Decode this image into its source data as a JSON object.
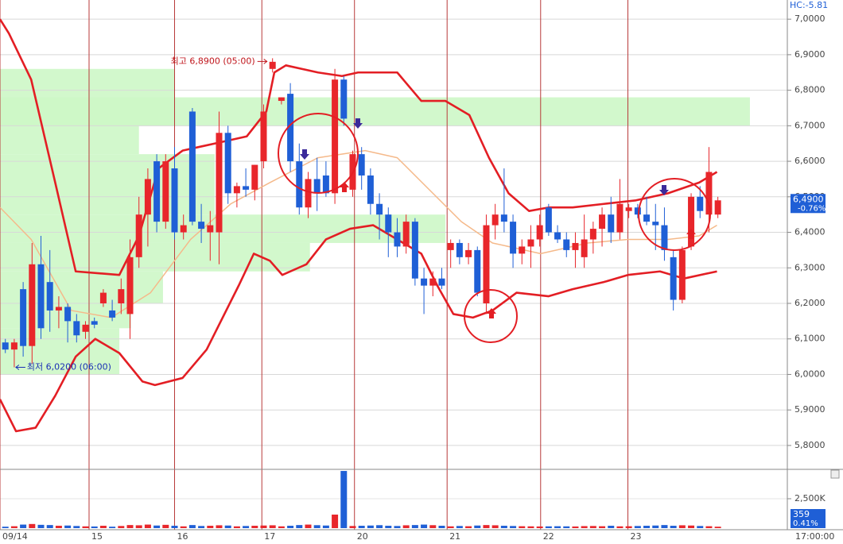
{
  "chart_data": [
    {
      "type": "candlestick",
      "header": "HC:-5.81",
      "open": [
        6.09,
        6.07,
        6.24,
        6.08,
        6.31,
        6.26,
        6.18,
        6.19,
        6.15,
        6.12,
        6.15,
        6.2,
        6.18,
        6.2,
        6.17,
        6.33,
        6.45,
        6.6,
        6.43,
        6.58,
        6.4,
        6.74,
        6.43,
        6.4,
        6.4,
        6.68,
        6.51,
        6.53,
        6.52,
        6.6,
        6.86,
        6.77,
        6.79,
        6.6,
        6.47,
        6.55,
        6.56,
        6.51,
        6.83,
        6.52,
        6.62,
        6.56,
        6.48,
        6.45,
        6.4,
        6.36,
        6.43,
        6.27,
        6.25,
        6.27,
        6.35,
        6.37,
        6.33,
        6.35,
        6.2,
        6.42,
        6.45,
        6.43,
        6.34,
        6.36,
        6.38,
        6.47,
        6.4,
        6.38,
        6.35,
        6.33,
        6.38,
        6.41,
        6.45,
        6.4,
        6.46,
        6.47,
        6.45,
        6.43,
        6.42,
        6.33,
        6.21,
        6.36,
        6.5,
        6.45,
        6.45
      ],
      "high": [
        6.1,
        6.1,
        6.26,
        6.37,
        6.39,
        6.35,
        6.22,
        6.2,
        6.17,
        6.15,
        6.16,
        6.24,
        6.21,
        6.27,
        6.38,
        6.5,
        6.58,
        6.62,
        6.62,
        6.64,
        6.45,
        6.75,
        6.48,
        6.46,
        6.74,
        6.7,
        6.54,
        6.58,
        6.59,
        6.76,
        6.89,
        6.78,
        6.82,
        6.65,
        6.57,
        6.61,
        6.6,
        6.86,
        6.84,
        6.63,
        6.64,
        6.58,
        6.51,
        6.47,
        6.44,
        6.45,
        6.44,
        6.3,
        6.29,
        6.3,
        6.38,
        6.38,
        6.37,
        6.36,
        6.45,
        6.48,
        6.58,
        6.45,
        6.38,
        6.42,
        6.45,
        6.48,
        6.42,
        6.4,
        6.4,
        6.45,
        6.43,
        6.47,
        6.5,
        6.55,
        6.48,
        6.48,
        6.5,
        6.48,
        6.47,
        6.35,
        6.36,
        6.51,
        6.53,
        6.64,
        6.5
      ],
      "low": [
        6.06,
        6.02,
        6.05,
        6.03,
        6.1,
        6.12,
        6.13,
        6.09,
        6.09,
        6.1,
        6.13,
        6.19,
        6.15,
        6.17,
        6.1,
        6.3,
        6.36,
        6.4,
        6.41,
        6.38,
        6.38,
        6.42,
        6.37,
        6.32,
        6.31,
        6.48,
        6.47,
        6.5,
        6.49,
        6.58,
        6.85,
        6.76,
        6.57,
        6.45,
        6.44,
        6.46,
        6.5,
        6.48,
        6.7,
        6.5,
        6.52,
        6.45,
        6.38,
        6.33,
        6.33,
        6.34,
        6.25,
        6.17,
        6.22,
        6.24,
        6.3,
        6.31,
        6.31,
        6.22,
        6.17,
        6.38,
        6.4,
        6.3,
        6.31,
        6.3,
        6.36,
        6.39,
        6.37,
        6.33,
        6.3,
        6.3,
        6.34,
        6.36,
        6.37,
        6.38,
        6.44,
        6.44,
        6.42,
        6.35,
        6.32,
        6.18,
        6.2,
        6.35,
        6.44,
        6.4,
        6.44
      ],
      "close": [
        6.07,
        6.09,
        6.08,
        6.31,
        6.13,
        6.18,
        6.19,
        6.15,
        6.11,
        6.14,
        6.14,
        6.23,
        6.16,
        6.24,
        6.33,
        6.45,
        6.55,
        6.43,
        6.6,
        6.4,
        6.42,
        6.43,
        6.41,
        6.42,
        6.68,
        6.51,
        6.53,
        6.52,
        6.59,
        6.74,
        6.88,
        6.78,
        6.6,
        6.47,
        6.55,
        6.51,
        6.51,
        6.83,
        6.72,
        6.62,
        6.56,
        6.48,
        6.45,
        6.4,
        6.36,
        6.43,
        6.27,
        6.25,
        6.27,
        6.25,
        6.37,
        6.33,
        6.35,
        6.23,
        6.42,
        6.45,
        6.43,
        6.34,
        6.36,
        6.38,
        6.42,
        6.4,
        6.38,
        6.35,
        6.37,
        6.38,
        6.41,
        6.45,
        6.4,
        6.48,
        6.47,
        6.45,
        6.43,
        6.42,
        6.35,
        6.21,
        6.35,
        6.5,
        6.46,
        6.57,
        6.49
      ],
      "up_color": "#e8262b",
      "down_color": "#1f5fd6",
      "xlim": [
        -0.6,
        87.8
      ],
      "xticks": [
        {
          "value": -0.6,
          "label": "09/14"
        },
        {
          "value": 9.4,
          "label": "15"
        },
        {
          "value": 19.0,
          "label": "16"
        },
        {
          "value": 28.8,
          "label": "17"
        },
        {
          "value": 39.2,
          "label": "20"
        },
        {
          "value": 49.6,
          "label": "21"
        },
        {
          "value": 60.1,
          "label": "22"
        },
        {
          "value": 69.9,
          "label": "23"
        }
      ],
      "day_line_color": "#b83a3a",
      "ylim": [
        5.735,
        7.054
      ],
      "yticks": [
        {
          "value": 7.0,
          "label": "7,0000"
        },
        {
          "value": 6.9,
          "label": "6,9000"
        },
        {
          "value": 6.8,
          "label": "6,8000"
        },
        {
          "value": 6.7,
          "label": "6,7000"
        },
        {
          "value": 6.6,
          "label": "6,6000"
        },
        {
          "value": 6.5,
          "label": "6,5000"
        },
        {
          "value": 6.4,
          "label": "6,4000"
        },
        {
          "value": 6.3,
          "label": "6,3000"
        },
        {
          "value": 6.2,
          "label": "6,2000"
        },
        {
          "value": 6.1,
          "label": "6,1000"
        },
        {
          "value": 6.0,
          "label": "6,0000"
        },
        {
          "value": 5.9,
          "label": "5,9000"
        },
        {
          "value": 5.8,
          "label": "5,8000"
        }
      ],
      "grid": true,
      "zones": {
        "color": "#cdf7c7",
        "items": [
          {
            "low": 6.7,
            "high": 6.86,
            "end": 19.0
          },
          {
            "low": 6.7,
            "high": 6.78,
            "end": 83.6
          },
          {
            "low": 6.62,
            "high": 6.7,
            "end": 15.0
          },
          {
            "low": 6.45,
            "high": 6.62,
            "end": 23.5
          },
          {
            "low": 6.37,
            "high": 6.45,
            "end": 49.4
          },
          {
            "low": 6.29,
            "high": 6.37,
            "end": 34.2
          },
          {
            "low": 6.2,
            "high": 6.29,
            "end": 17.7
          },
          {
            "low": 6.13,
            "high": 6.2,
            "end": 14.1
          },
          {
            "low": 6.0,
            "high": 6.13,
            "end": 12.8
          }
        ]
      },
      "overlays": [
        {
          "color": "#f5b98a",
          "width": 1.5,
          "x": [
            -0.6,
            2.9,
            7.4,
            11.9,
            16.3,
            20.8,
            25.3,
            29.7,
            35.1,
            40.4,
            44.0,
            47.6,
            51.2,
            54.7,
            60.1,
            65.4,
            69.9,
            74.4,
            77.9,
            79.9
          ],
          "values": [
            6.47,
            6.38,
            6.18,
            6.16,
            6.23,
            6.38,
            6.48,
            6.54,
            6.61,
            6.63,
            6.61,
            6.52,
            6.43,
            6.37,
            6.34,
            6.37,
            6.38,
            6.38,
            6.39,
            6.42
          ]
        },
        {
          "color": "#e31e24",
          "width": 2.6,
          "x": [
            -0.6,
            0.4,
            2.9,
            5.6,
            7.9,
            12.8,
            15.0,
            17.2,
            19.9,
            23.5,
            27.1,
            29.3,
            30.2,
            31.5,
            35.1,
            37.8,
            39.6,
            44.0,
            46.7,
            49.4,
            52.1,
            54.3,
            56.5,
            58.8,
            61.0,
            63.7,
            67.2,
            70.8,
            74.4,
            77.9,
            79.9
          ],
          "values": [
            7.0,
            6.96,
            6.83,
            6.54,
            6.29,
            6.28,
            6.39,
            6.58,
            6.63,
            6.65,
            6.67,
            6.74,
            6.85,
            6.87,
            6.85,
            6.84,
            6.85,
            6.85,
            6.77,
            6.77,
            6.73,
            6.61,
            6.51,
            6.46,
            6.47,
            6.47,
            6.48,
            6.49,
            6.51,
            6.54,
            6.57
          ]
        },
        {
          "color": "#e31e24",
          "width": 2.6,
          "x": [
            -0.6,
            1.2,
            3.4,
            5.6,
            7.9,
            10.1,
            12.8,
            15.4,
            16.8,
            19.9,
            22.6,
            26.2,
            27.9,
            29.7,
            31.1,
            33.8,
            36.0,
            38.7,
            41.3,
            44.0,
            46.7,
            48.5,
            50.3,
            52.5,
            54.7,
            57.4,
            61.0,
            63.7,
            67.2,
            69.9,
            73.5,
            76.2,
            79.9
          ],
          "values": [
            5.93,
            5.84,
            5.85,
            5.94,
            6.05,
            6.1,
            6.06,
            5.98,
            5.97,
            5.99,
            6.07,
            6.25,
            6.34,
            6.32,
            6.28,
            6.31,
            6.38,
            6.41,
            6.42,
            6.38,
            6.34,
            6.25,
            6.17,
            6.16,
            6.18,
            6.23,
            6.22,
            6.24,
            6.26,
            6.28,
            6.29,
            6.27,
            6.29
          ]
        }
      ],
      "annotations": [
        {
          "text": "최고 6,8900 (05:00)",
          "color": "#c0161c"
        },
        {
          "text": "최저 6,0200 (06:00)",
          "color": "#1b2fb5"
        }
      ],
      "last": {
        "value": 6.49,
        "label": "6,4900",
        "change": "-0.76%"
      },
      "time_label": "17:00:00"
    },
    {
      "type": "bar",
      "values": [
        120,
        160,
        300,
        350,
        280,
        260,
        200,
        220,
        180,
        150,
        140,
        200,
        120,
        180,
        260,
        240,
        300,
        220,
        280,
        200,
        150,
        260,
        180,
        200,
        240,
        220,
        150,
        180,
        200,
        220,
        240,
        150,
        200,
        260,
        300,
        250,
        220,
        1150,
        4860,
        180,
        200,
        220,
        250,
        200,
        180,
        240,
        260,
        300,
        250,
        200,
        150,
        180,
        160,
        220,
        260,
        240,
        200,
        180,
        160,
        150,
        140,
        150,
        160,
        150,
        140,
        170,
        180,
        160,
        200,
        150,
        160,
        180,
        200,
        220,
        260,
        200,
        240,
        220,
        180,
        160,
        120
      ],
      "ylim": [
        0,
        4930
      ],
      "yticks": [
        {
          "value": 2500,
          "label": "2,500K"
        }
      ],
      "last_label": "359",
      "change": "0.41%"
    }
  ]
}
